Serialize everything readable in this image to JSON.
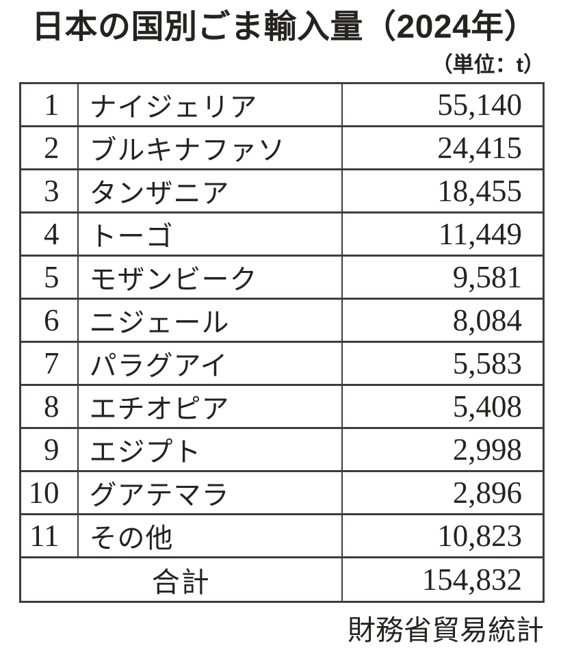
{
  "title": "日本の国別ごま輸入量（2024年）",
  "unit_label": "（単位：t）",
  "source": "財務省貿易統計",
  "colors": {
    "text": "#262222",
    "border": "#403b3b",
    "background": "#ffffff"
  },
  "table": {
    "rows": [
      {
        "rank": "1",
        "country": "ナイジェリア",
        "value": "55,140"
      },
      {
        "rank": "2",
        "country": "ブルキナファソ",
        "value": "24,415"
      },
      {
        "rank": "3",
        "country": "タンザニア",
        "value": "18,455"
      },
      {
        "rank": "4",
        "country": "トーゴ",
        "value": "11,449"
      },
      {
        "rank": "5",
        "country": "モザンビーク",
        "value": "9,581"
      },
      {
        "rank": "6",
        "country": "ニジェール",
        "value": "8,084"
      },
      {
        "rank": "7",
        "country": "パラグアイ",
        "value": "5,583"
      },
      {
        "rank": "8",
        "country": "エチオピア",
        "value": "5,408"
      },
      {
        "rank": "9",
        "country": "エジプト",
        "value": "2,998"
      },
      {
        "rank": "10",
        "country": "グアテマラ",
        "value": "2,896"
      },
      {
        "rank": "11",
        "country": "その他",
        "value": "10,823"
      }
    ],
    "total_label": "合計",
    "total_value": "154,832"
  },
  "chart_data": {
    "type": "table",
    "title": "日本の国別ごま輸入量（2024年）",
    "unit": "t",
    "categories": [
      "ナイジェリア",
      "ブルキナファソ",
      "タンザニア",
      "トーゴ",
      "モザンビーク",
      "ニジェール",
      "パラグアイ",
      "エチオピア",
      "エジプト",
      "グアテマラ",
      "その他"
    ],
    "values": [
      55140,
      24415,
      18455,
      11449,
      9581,
      8084,
      5583,
      5408,
      2998,
      2896,
      10823
    ],
    "total": 154832,
    "source": "財務省貿易統計"
  }
}
